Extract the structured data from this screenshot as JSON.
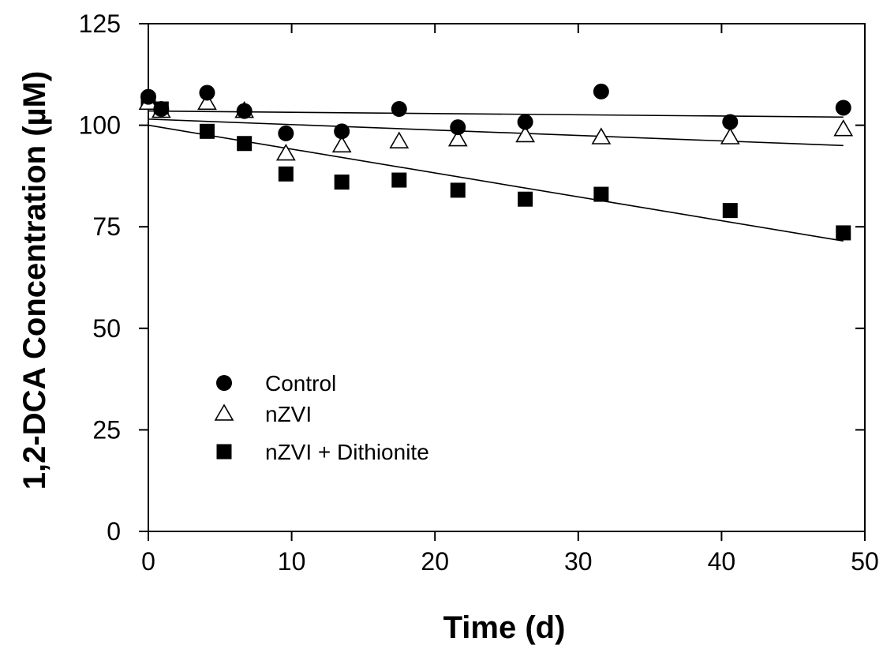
{
  "chart_data": {
    "type": "scatter",
    "title": "",
    "xlabel": "Time (d)",
    "ylabel": "1,2-DCA Concentration (µM)",
    "xlim": [
      0,
      50
    ],
    "ylim": [
      0,
      125
    ],
    "xticks": [
      0,
      10,
      20,
      30,
      40,
      50
    ],
    "yticks": [
      0,
      25,
      50,
      75,
      100,
      125
    ],
    "xtick_labels": [
      "0",
      "10",
      "20",
      "30",
      "40",
      "50"
    ],
    "ytick_labels": [
      "0",
      "25",
      "50",
      "75",
      "100",
      "125"
    ],
    "grid": false,
    "legend_position": "lower-left",
    "series": [
      {
        "name": "Control",
        "marker": "filled-circle",
        "x": [
          0,
          0.9,
          4.1,
          6.7,
          9.6,
          13.5,
          17.5,
          21.6,
          26.3,
          31.6,
          40.6,
          48.5
        ],
        "y": [
          107,
          104,
          108,
          103.5,
          98,
          98.5,
          104,
          99.5,
          100.8,
          108.3,
          100.8,
          104.3
        ],
        "trend": {
          "x": [
            0,
            48.5
          ],
          "y": [
            103.5,
            102
          ]
        }
      },
      {
        "name": "nZVI",
        "marker": "open-triangle",
        "x": [
          0,
          0.9,
          4.1,
          6.7,
          9.6,
          13.5,
          17.5,
          21.6,
          26.3,
          31.6,
          40.6,
          48.5
        ],
        "y": [
          105.5,
          103.5,
          105.5,
          103.5,
          93,
          95,
          96,
          96.5,
          97.5,
          97,
          97,
          99
        ],
        "trend": {
          "x": [
            0,
            48.5
          ],
          "y": [
            101.5,
            95
          ]
        }
      },
      {
        "name": "nZVI + Dithionite",
        "marker": "filled-square",
        "x": [
          0,
          0.9,
          4.1,
          6.7,
          9.6,
          13.5,
          17.5,
          21.6,
          26.3,
          31.6,
          40.6,
          48.5
        ],
        "y": [
          106,
          104,
          98.5,
          95.5,
          88,
          86,
          86.5,
          84,
          81.8,
          83,
          79,
          73.5
        ],
        "trend": {
          "x": [
            0,
            48.5
          ],
          "y": [
            100,
            71.5
          ]
        }
      }
    ]
  }
}
